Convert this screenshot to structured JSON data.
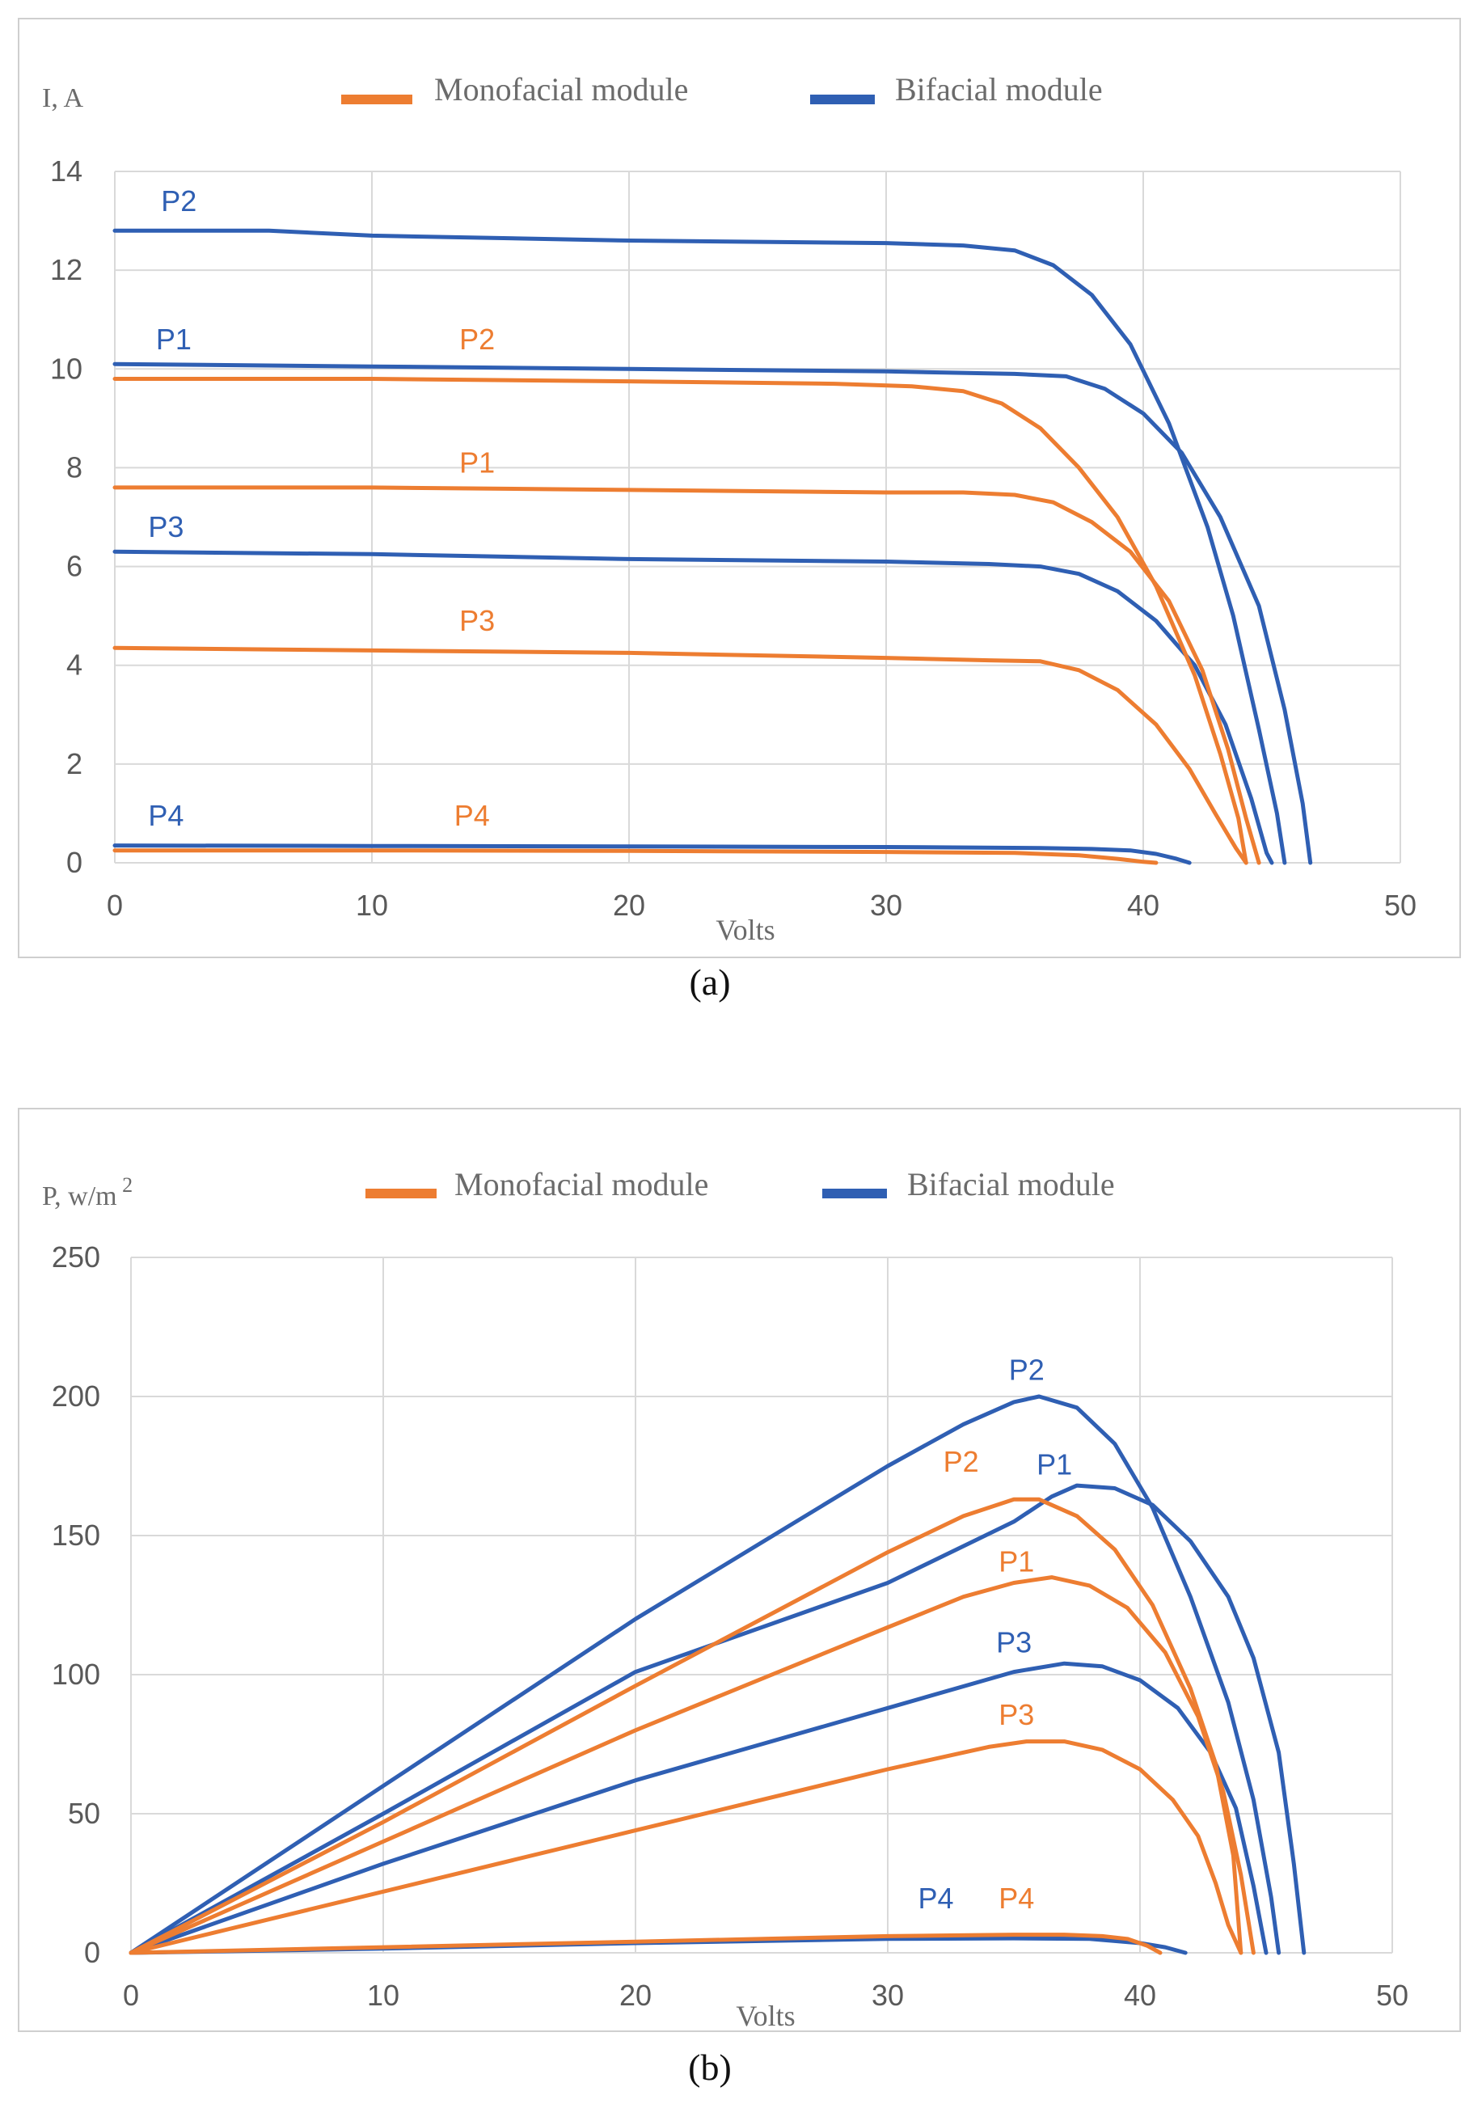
{
  "colors": {
    "mono": "#ed7d31",
    "bi": "#2f5fb3",
    "grid": "#d9d9d9",
    "tick": "#595959"
  },
  "chart_data": [
    {
      "type": "line",
      "ylabel": "I, A",
      "xlabel": "Volts",
      "xlim": [
        0,
        50
      ],
      "ylim": [
        0,
        14
      ],
      "xticks": [
        "0",
        "10",
        "20",
        "30",
        "40",
        "50"
      ],
      "yticks": [
        "0",
        "2",
        "4",
        "6",
        "8",
        "10",
        "12",
        "14"
      ],
      "legend": [
        {
          "key": "mono",
          "label": "Monofacial  module"
        },
        {
          "key": "bi",
          "label": "Bifacial module"
        }
      ],
      "caption": "(a)",
      "series": [
        {
          "name": "Bifacial P2",
          "group": "bi",
          "label": "P2",
          "label_at": [
            1.8,
            13.2
          ],
          "points": [
            [
              0,
              12.8
            ],
            [
              6,
              12.8
            ],
            [
              10,
              12.7
            ],
            [
              20,
              12.6
            ],
            [
              30,
              12.55
            ],
            [
              33,
              12.5
            ],
            [
              35,
              12.4
            ],
            [
              36.5,
              12.1
            ],
            [
              38,
              11.5
            ],
            [
              39.5,
              10.5
            ],
            [
              41,
              8.9
            ],
            [
              42.5,
              6.8
            ],
            [
              43.5,
              5.0
            ],
            [
              44.5,
              2.7
            ],
            [
              45.2,
              1.0
            ],
            [
              45.5,
              0
            ]
          ]
        },
        {
          "name": "Bifacial P1",
          "group": "bi",
          "label": "P1",
          "label_at": [
            1.6,
            10.4
          ],
          "points": [
            [
              0,
              10.1
            ],
            [
              10,
              10.05
            ],
            [
              20,
              10.0
            ],
            [
              30,
              9.95
            ],
            [
              35,
              9.9
            ],
            [
              37,
              9.85
            ],
            [
              38.5,
              9.6
            ],
            [
              40,
              9.1
            ],
            [
              41.5,
              8.3
            ],
            [
              43,
              7.0
            ],
            [
              44.5,
              5.2
            ],
            [
              45.5,
              3.1
            ],
            [
              46.2,
              1.2
            ],
            [
              46.5,
              0
            ]
          ]
        },
        {
          "name": "Bifacial P3",
          "group": "bi",
          "label": "P3",
          "label_at": [
            1.3,
            6.6
          ],
          "points": [
            [
              0,
              6.3
            ],
            [
              10,
              6.25
            ],
            [
              20,
              6.15
            ],
            [
              30,
              6.1
            ],
            [
              34,
              6.05
            ],
            [
              36,
              6.0
            ],
            [
              37.5,
              5.85
            ],
            [
              39,
              5.5
            ],
            [
              40.5,
              4.9
            ],
            [
              42,
              4.0
            ],
            [
              43.2,
              2.8
            ],
            [
              44.2,
              1.3
            ],
            [
              44.8,
              0.2
            ],
            [
              45,
              0
            ]
          ]
        },
        {
          "name": "Bifacial P4",
          "group": "bi",
          "label": "P4",
          "label_at": [
            1.3,
            0.75
          ],
          "points": [
            [
              0,
              0.35
            ],
            [
              10,
              0.34
            ],
            [
              20,
              0.33
            ],
            [
              30,
              0.32
            ],
            [
              36,
              0.3
            ],
            [
              38,
              0.28
            ],
            [
              39.5,
              0.25
            ],
            [
              40.5,
              0.18
            ],
            [
              41.3,
              0.08
            ],
            [
              41.8,
              0
            ]
          ]
        },
        {
          "name": "Monofacial P2",
          "group": "mono",
          "label": "P2",
          "label_at": [
            13.4,
            10.4
          ],
          "points": [
            [
              0,
              9.8
            ],
            [
              10,
              9.8
            ],
            [
              20,
              9.75
            ],
            [
              28,
              9.7
            ],
            [
              31,
              9.65
            ],
            [
              33,
              9.55
            ],
            [
              34.5,
              9.3
            ],
            [
              36,
              8.8
            ],
            [
              37.5,
              8.0
            ],
            [
              39,
              7.0
            ],
            [
              40.5,
              5.6
            ],
            [
              42,
              3.8
            ],
            [
              43,
              2.2
            ],
            [
              43.7,
              0.9
            ],
            [
              44,
              0
            ]
          ]
        },
        {
          "name": "Monofacial P1",
          "group": "mono",
          "label": "P1",
          "label_at": [
            13.4,
            7.9
          ],
          "points": [
            [
              0,
              7.6
            ],
            [
              10,
              7.6
            ],
            [
              20,
              7.55
            ],
            [
              30,
              7.5
            ],
            [
              33,
              7.5
            ],
            [
              35,
              7.45
            ],
            [
              36.5,
              7.3
            ],
            [
              38,
              6.9
            ],
            [
              39.5,
              6.3
            ],
            [
              41,
              5.3
            ],
            [
              42.3,
              3.9
            ],
            [
              43.3,
              2.3
            ],
            [
              44,
              0.9
            ],
            [
              44.5,
              0
            ]
          ]
        },
        {
          "name": "Monofacial P3",
          "group": "mono",
          "label": "P3",
          "label_at": [
            13.4,
            4.7
          ],
          "points": [
            [
              0,
              4.35
            ],
            [
              10,
              4.3
            ],
            [
              20,
              4.25
            ],
            [
              30,
              4.15
            ],
            [
              34,
              4.1
            ],
            [
              36,
              4.08
            ],
            [
              37.5,
              3.9
            ],
            [
              39,
              3.5
            ],
            [
              40.5,
              2.8
            ],
            [
              41.8,
              1.9
            ],
            [
              42.8,
              1.0
            ],
            [
              43.6,
              0.3
            ],
            [
              44,
              0
            ]
          ]
        },
        {
          "name": "Monofacial P4",
          "group": "mono",
          "label": "P4",
          "label_at": [
            13.2,
            0.75
          ],
          "points": [
            [
              0,
              0.25
            ],
            [
              10,
              0.25
            ],
            [
              20,
              0.24
            ],
            [
              30,
              0.22
            ],
            [
              35,
              0.2
            ],
            [
              37.5,
              0.15
            ],
            [
              39,
              0.08
            ],
            [
              40,
              0.02
            ],
            [
              40.5,
              0
            ]
          ]
        }
      ]
    },
    {
      "type": "line",
      "ylabel": "P, w/m",
      "ylabel_sup": "2",
      "xlabel": "Volts",
      "xlim": [
        0,
        50
      ],
      "ylim": [
        0,
        250
      ],
      "xticks": [
        "0",
        "10",
        "20",
        "30",
        "40",
        "50"
      ],
      "yticks": [
        "0",
        "50",
        "100",
        "150",
        "200",
        "250"
      ],
      "legend": [
        {
          "key": "mono",
          "label": "Monofacial  module"
        },
        {
          "key": "bi",
          "label": "Bifacial module"
        }
      ],
      "caption": "(b)",
      "series": [
        {
          "name": "Bifacial P2",
          "group": "bi",
          "label": "P2",
          "label_at": [
            34.8,
            206
          ],
          "points": [
            [
              0,
              0
            ],
            [
              10,
              60
            ],
            [
              20,
              120
            ],
            [
              30,
              175
            ],
            [
              33,
              190
            ],
            [
              35,
              198
            ],
            [
              36,
              200
            ],
            [
              37.5,
              196
            ],
            [
              39,
              183
            ],
            [
              40.5,
              160
            ],
            [
              42,
              128
            ],
            [
              43.5,
              90
            ],
            [
              44.5,
              55
            ],
            [
              45.2,
              20
            ],
            [
              45.5,
              0
            ]
          ]
        },
        {
          "name": "Bifacial P1",
          "group": "bi",
          "label": "P1",
          "label_at": [
            35.9,
            172
          ],
          "points": [
            [
              0,
              0
            ],
            [
              10,
              50
            ],
            [
              20,
              101
            ],
            [
              30,
              133
            ],
            [
              35,
              155
            ],
            [
              36.5,
              164
            ],
            [
              37.5,
              168
            ],
            [
              39,
              167
            ],
            [
              40.5,
              161
            ],
            [
              42,
              148
            ],
            [
              43.5,
              128
            ],
            [
              44.5,
              106
            ],
            [
              45.5,
              72
            ],
            [
              46.1,
              32
            ],
            [
              46.5,
              0
            ]
          ]
        },
        {
          "name": "Bifacial P3",
          "group": "bi",
          "label": "P3",
          "label_at": [
            34.3,
            108
          ],
          "points": [
            [
              0,
              0
            ],
            [
              10,
              32
            ],
            [
              20,
              62
            ],
            [
              30,
              88
            ],
            [
              35,
              101
            ],
            [
              37,
              104
            ],
            [
              38.5,
              103
            ],
            [
              40,
              98
            ],
            [
              41.5,
              88
            ],
            [
              42.8,
              72
            ],
            [
              43.8,
              52
            ],
            [
              44.5,
              24
            ],
            [
              45,
              0
            ]
          ]
        },
        {
          "name": "Bifacial P4",
          "group": "bi",
          "label": "P4",
          "label_at": [
            31.2,
            16
          ],
          "points": [
            [
              0,
              0
            ],
            [
              10,
              1.5
            ],
            [
              20,
              3.5
            ],
            [
              30,
              5.0
            ],
            [
              35,
              5.2
            ],
            [
              38,
              5.0
            ],
            [
              40,
              3.5
            ],
            [
              41,
              2.0
            ],
            [
              41.8,
              0
            ]
          ]
        },
        {
          "name": "Monofacial P2",
          "group": "mono",
          "label": "P2",
          "label_at": [
            32.2,
            173
          ],
          "points": [
            [
              0,
              0
            ],
            [
              10,
              47
            ],
            [
              20,
              96
            ],
            [
              30,
              144
            ],
            [
              33,
              157
            ],
            [
              35,
              163
            ],
            [
              36,
              163
            ],
            [
              37.5,
              157
            ],
            [
              39,
              145
            ],
            [
              40.5,
              125
            ],
            [
              42,
              95
            ],
            [
              43,
              68
            ],
            [
              43.7,
              35
            ],
            [
              44,
              0
            ]
          ]
        },
        {
          "name": "Monofacial P1",
          "group": "mono",
          "label": "P1",
          "label_at": [
            34.4,
            137
          ],
          "points": [
            [
              0,
              0
            ],
            [
              10,
              40
            ],
            [
              20,
              80
            ],
            [
              30,
              117
            ],
            [
              33,
              128
            ],
            [
              35,
              133
            ],
            [
              36.5,
              135
            ],
            [
              38,
              132
            ],
            [
              39.5,
              124
            ],
            [
              41,
              108
            ],
            [
              42.3,
              85
            ],
            [
              43.3,
              58
            ],
            [
              44,
              28
            ],
            [
              44.5,
              0
            ]
          ]
        },
        {
          "name": "Monofacial P3",
          "group": "mono",
          "label": "P3",
          "label_at": [
            34.4,
            82
          ],
          "points": [
            [
              0,
              0
            ],
            [
              10,
              22
            ],
            [
              20,
              44
            ],
            [
              30,
              66
            ],
            [
              34,
              74
            ],
            [
              35.5,
              76
            ],
            [
              37,
              76
            ],
            [
              38.5,
              73
            ],
            [
              40,
              66
            ],
            [
              41.3,
              55
            ],
            [
              42.3,
              42
            ],
            [
              43,
              25
            ],
            [
              43.5,
              10
            ],
            [
              44,
              0
            ]
          ]
        },
        {
          "name": "Monofacial P4",
          "group": "mono",
          "label": "P4",
          "label_at": [
            34.4,
            16
          ],
          "points": [
            [
              0,
              0
            ],
            [
              10,
              2
            ],
            [
              20,
              4
            ],
            [
              30,
              6
            ],
            [
              35,
              6.5
            ],
            [
              37,
              6.5
            ],
            [
              38.5,
              6
            ],
            [
              39.5,
              5
            ],
            [
              40.3,
              2.5
            ],
            [
              40.8,
              0
            ]
          ]
        }
      ]
    }
  ]
}
